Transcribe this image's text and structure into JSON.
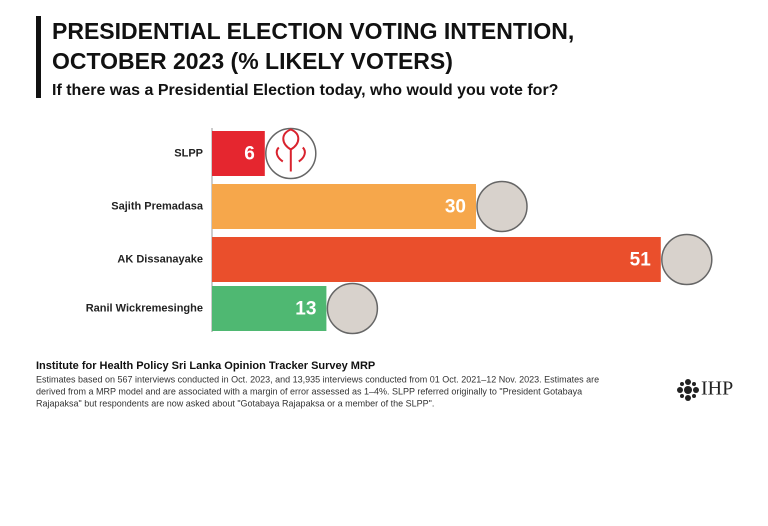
{
  "chart_data": {
    "type": "bar",
    "orientation": "horizontal",
    "title_lines": [
      "PRESIDENTIAL ELECTION VOTING INTENTION,",
      "OCTOBER 2023 (% LIKELY VOTERS)"
    ],
    "subtitle": "If there was a Presidential Election today, who would you vote for?",
    "categories": [
      "SLPP",
      "Sajith Premadasa",
      "AK Dissanayake",
      "Ranil Wickremesinghe"
    ],
    "values": [
      6,
      30,
      51,
      13
    ],
    "colors": [
      "#e5262f",
      "#f6a74b",
      "#ea4f2c",
      "#4fb872"
    ],
    "source": "Institute for Health Policy Sri Lanka Opinion Tracker Survey MRP",
    "notes": [
      "Estimates based on 567 interviews conducted in Oct. 2023, and 13,935 interviews conducted from 01 Oct. 2021–12 Nov. 2023. Estimates are",
      "derived from a MRP model and are associated with a margin of error assessed as 1–4%. SLPP referred originally to \"President Gotabaya",
      "Rajapaksa\" but respondents are now asked about \"Gotabaya Rajapaksa or a member of the SLPP\"."
    ],
    "logo": "IHP"
  }
}
